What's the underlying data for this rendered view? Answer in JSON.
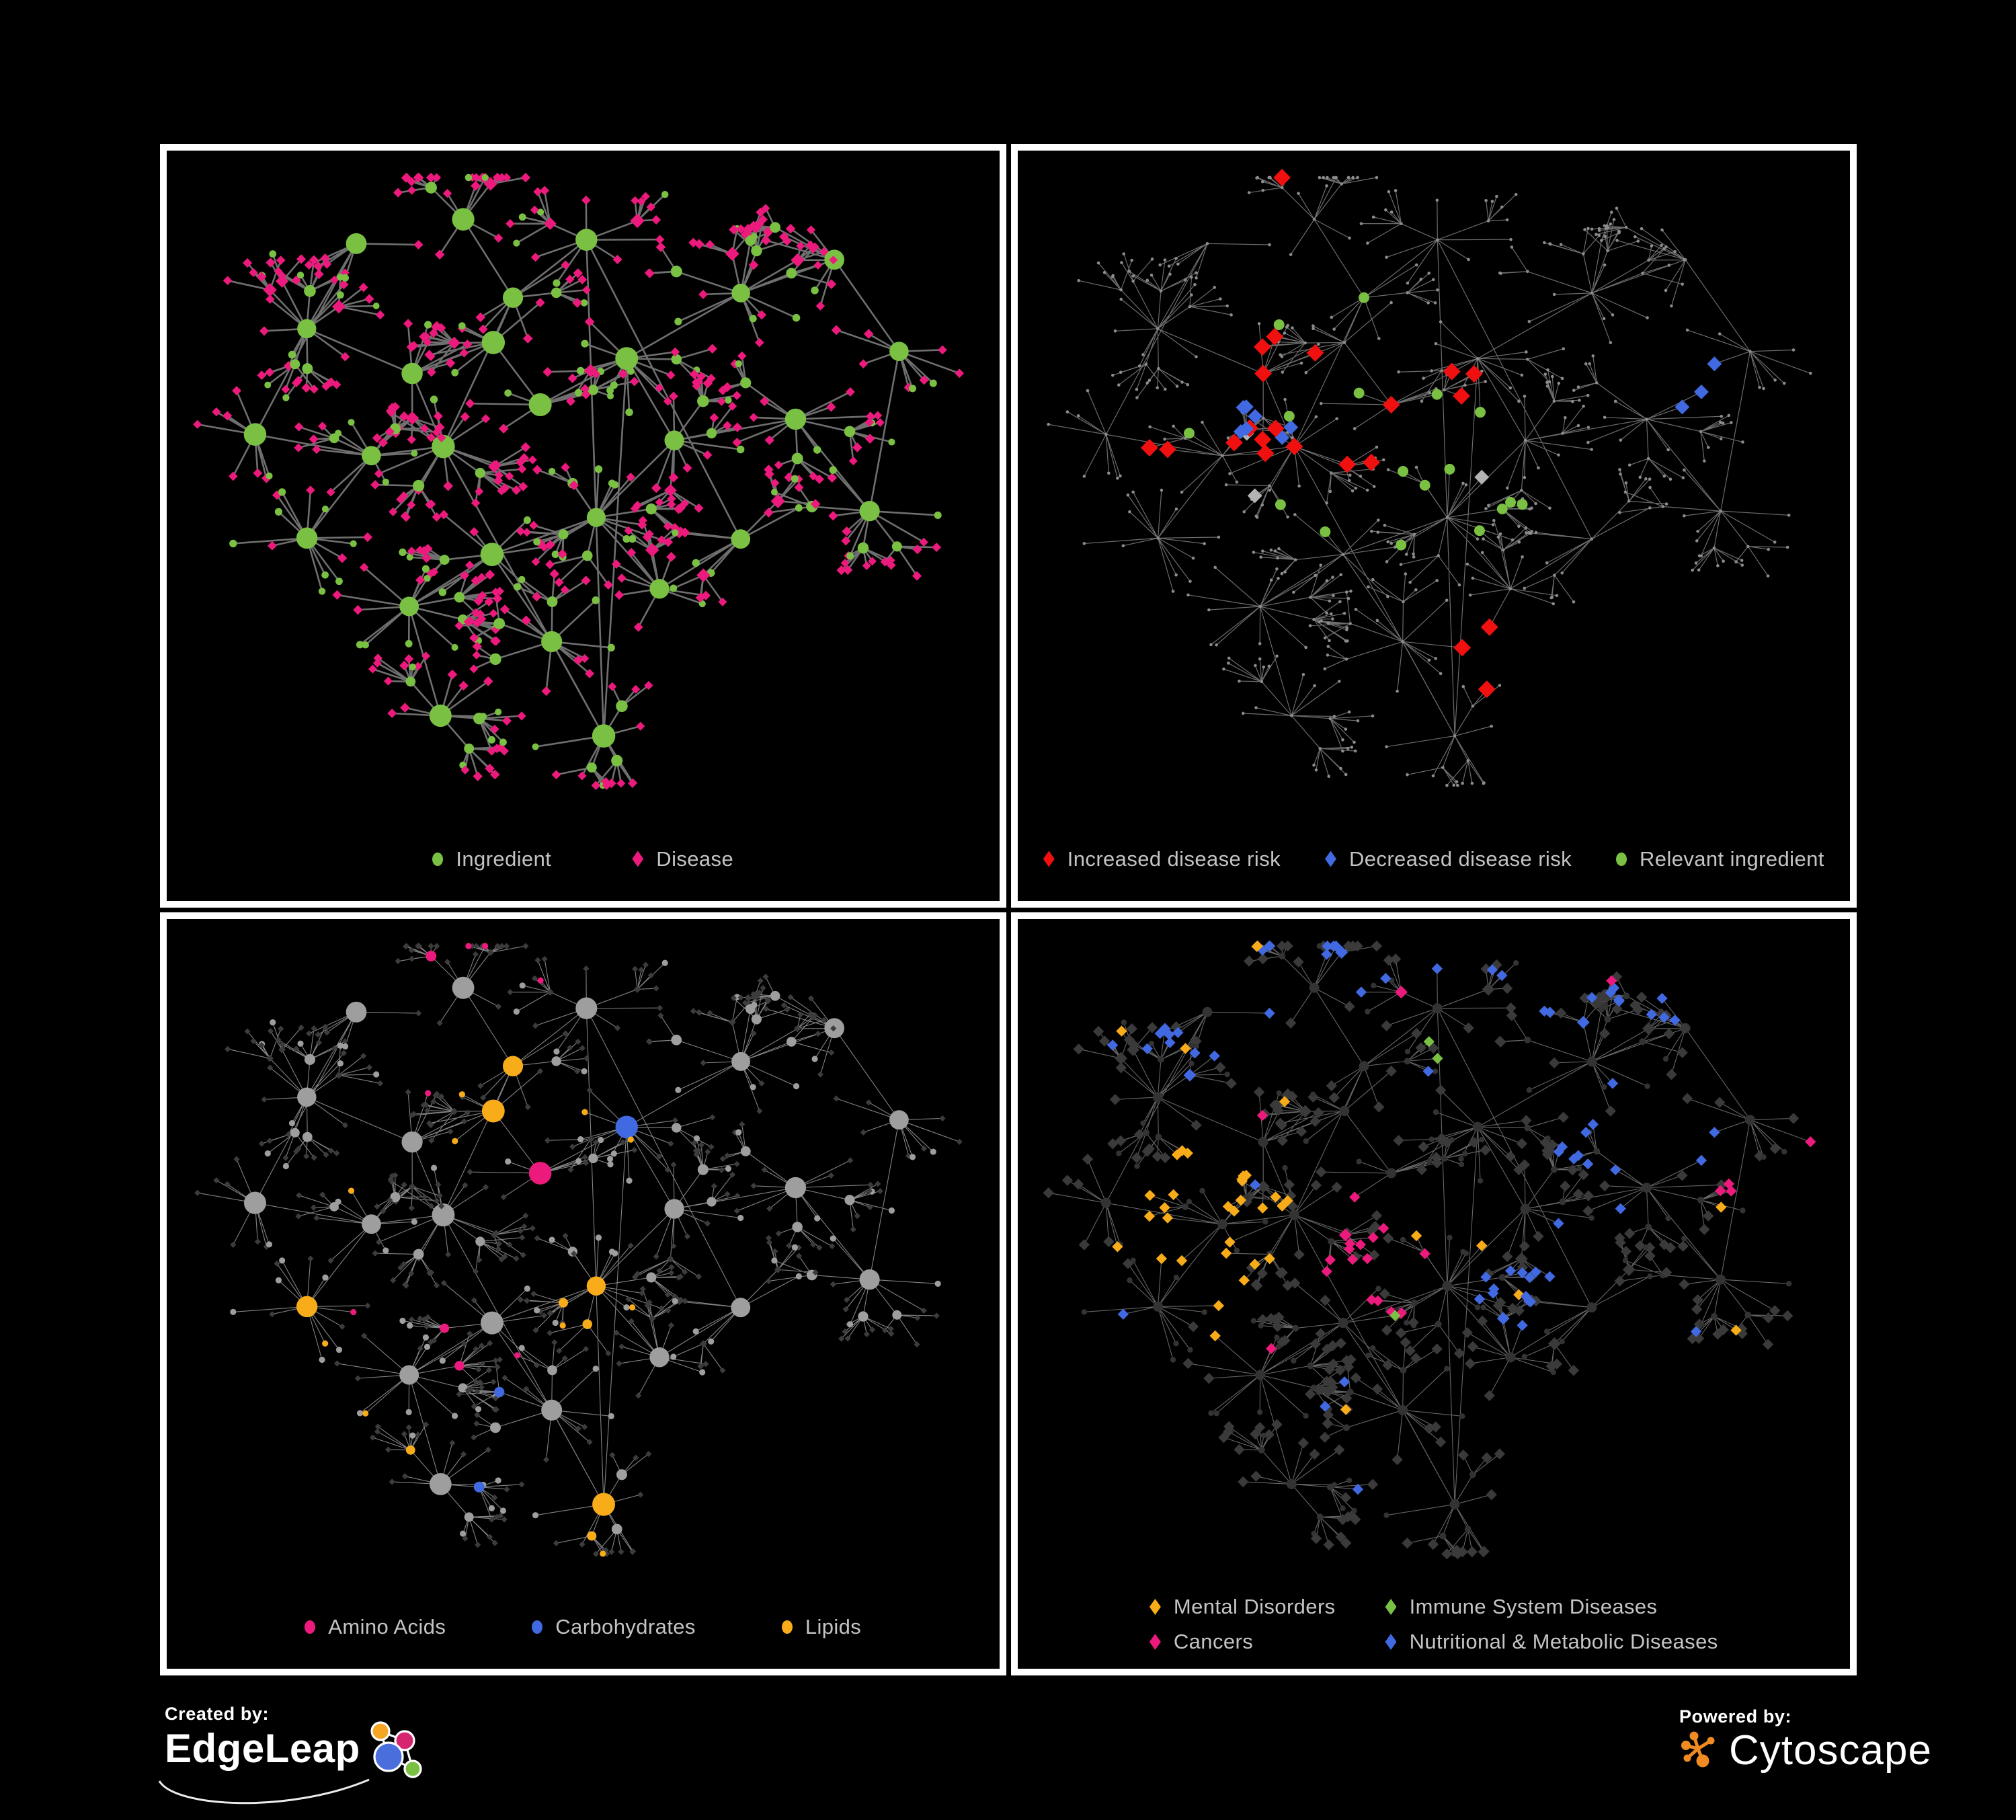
{
  "branding": {
    "created_by": "Created by:",
    "edgeleap": "EdgeLeap",
    "powered_by": "Powered by:",
    "cytoscape": "Cytoscape"
  },
  "panels": [
    {
      "id": "ingredient-disease",
      "legend": [
        {
          "label": "Ingredient",
          "shape": "circle",
          "color": "#7AC143"
        },
        {
          "label": "Disease",
          "shape": "diamond",
          "color": "#EC1A7C"
        }
      ]
    },
    {
      "id": "disease-risk",
      "legend": [
        {
          "label": "Increased disease risk",
          "shape": "diamond",
          "color": "#F01010"
        },
        {
          "label": "Decreased disease risk",
          "shape": "diamond",
          "color": "#4169E1"
        },
        {
          "label": "Relevant ingredient",
          "shape": "circle",
          "color": "#7AC143"
        }
      ]
    },
    {
      "id": "nutrient-classes",
      "legend": [
        {
          "label": "Amino Acids",
          "shape": "circle",
          "color": "#EC1A7C"
        },
        {
          "label": "Carbohydrates",
          "shape": "circle",
          "color": "#4169E1"
        },
        {
          "label": "Lipids",
          "shape": "circle",
          "color": "#F9AC19"
        }
      ]
    },
    {
      "id": "disease-classes",
      "legend": [
        {
          "label": "Mental Disorders",
          "shape": "diamond",
          "color": "#F9AC19"
        },
        {
          "label": "Immune System Diseases",
          "shape": "diamond",
          "color": "#7AC143"
        },
        {
          "label": "Cancers",
          "shape": "diamond",
          "color": "#EC1A7C"
        },
        {
          "label": "Nutritional & Metabolic Diseases",
          "shape": "diamond",
          "color": "#4169E1"
        }
      ]
    }
  ],
  "network": {
    "seed": 20,
    "palette": {
      "green": "#7AC143",
      "pink": "#EC1A7C",
      "red": "#F01010",
      "blue": "#4169E1",
      "orange": "#F9AC19",
      "gray_highlight": "#B3B3B3",
      "p1_edge": "#6F6F6F",
      "p2_edge": "#6C6C6C",
      "p2_node": "#8C8C8C",
      "p3_edge": "#9A9A9A",
      "p3_node": "#9E9E9E",
      "p3_diamond": "#3C3C3C",
      "p4_edge": "#666666",
      "p4_diamond": "#3A3A3A",
      "p4_node": "#333333"
    },
    "logo_colors": {
      "edgeleap_orange": "#F5A623",
      "edgeleap_pink": "#D6246E",
      "edgeleap_blue": "#4A6EDC",
      "edgeleap_green": "#7AC143",
      "cytoscape_orange": "#EF8B22"
    }
  }
}
